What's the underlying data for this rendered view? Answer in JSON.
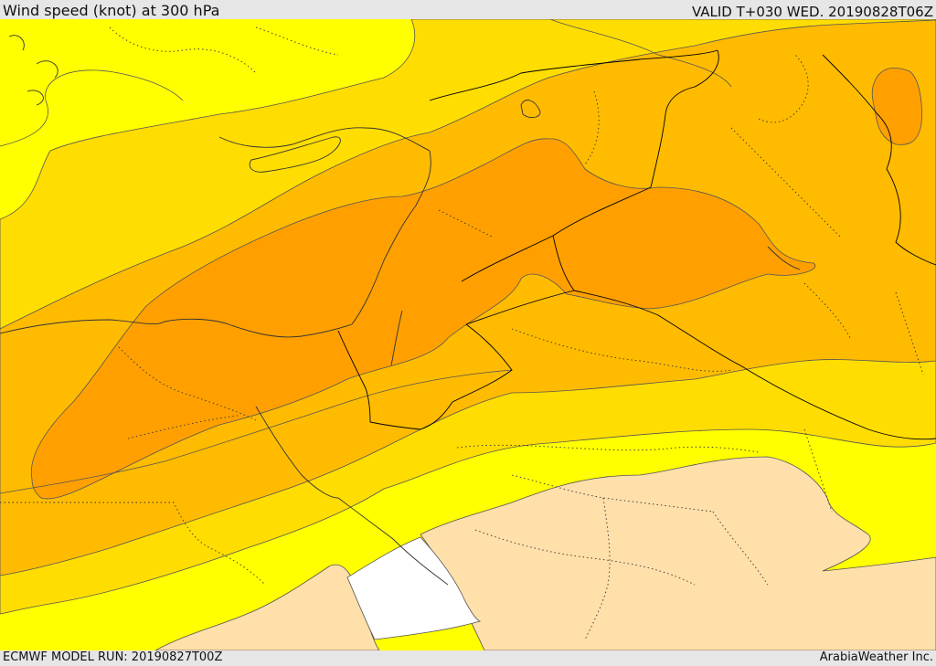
{
  "header": {
    "title": "Wind speed (knot) at 300 hPa",
    "valid": "VALID T+030 WED. 20190828T06Z"
  },
  "footer": {
    "model_run": "ECMWF MODEL RUN: 20190827T00Z",
    "credit": "ArabiaWeather Inc."
  },
  "map": {
    "variable": "wind speed at 300 hPa",
    "unit": "knot",
    "colors": {
      "band_lightest": "#ffff00",
      "band_low": "#ffdd00",
      "band_mid": "#ffbb00",
      "band_high": "#ffa000",
      "band_calm": "#ffdfaa",
      "band_none": "#ffffff",
      "contour": "#555555",
      "border": "#000000"
    }
  }
}
